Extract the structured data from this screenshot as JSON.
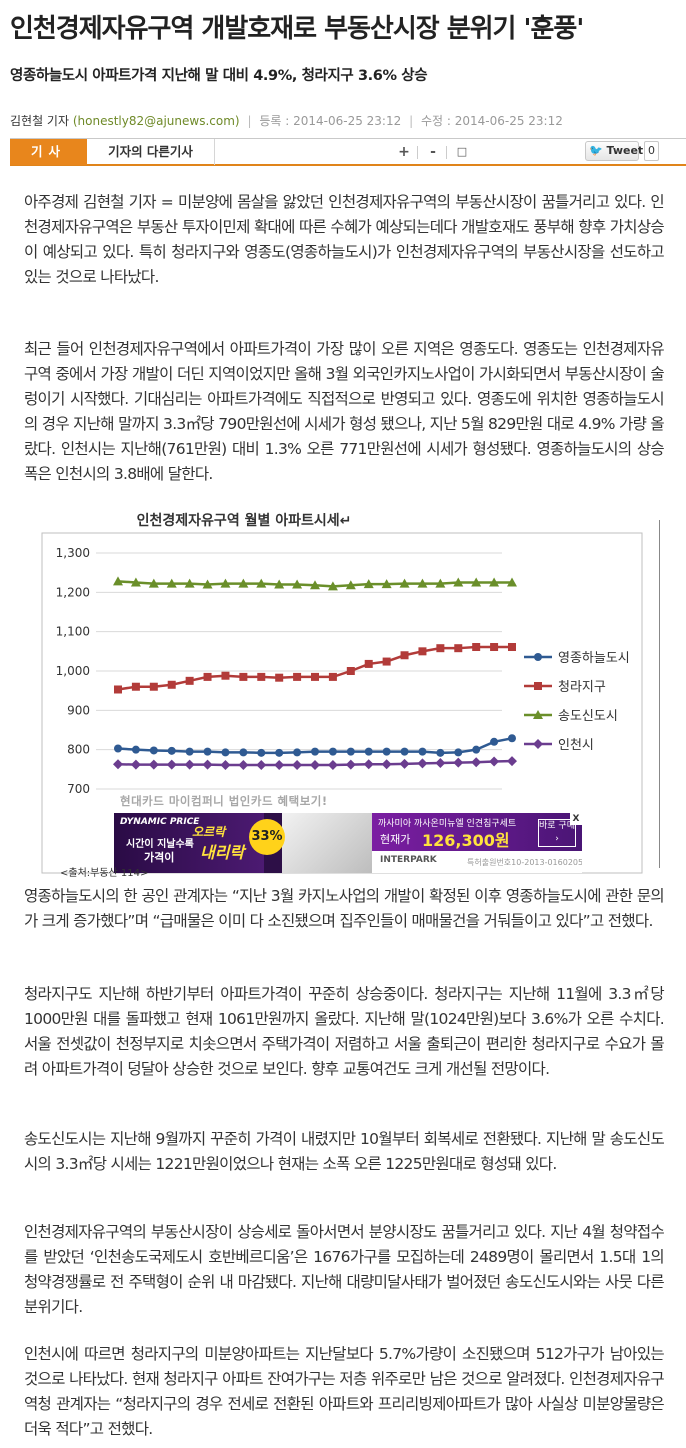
{
  "article": {
    "title": "인천경제자유구역 개발호재로 부동산시장 분위기 '훈풍'",
    "subtitle": "영종하늘도시 아파트가격 지난해 말 대비 4.9%, 청라지구 3.6% 상승",
    "author": "김현철 기자",
    "email": "(honestly82@ajunews.com)",
    "registered_label": "등록 :",
    "registered": "2014-06-25 23:12",
    "modified_label": "수정 :",
    "modified": "2014-06-25 23:12"
  },
  "toolbar": {
    "tab_article": "기사",
    "tab_other": "기자의 다른기사",
    "font_up": "+",
    "font_down": "-",
    "print": "□",
    "tweet_label": "Tweet",
    "tweet_count": "0"
  },
  "paragraphs": [
    "아주경제 김현철 기자 = 미분양에 몸살을 앓았던 인천경제자유구역의 부동산시장이 꿈틀거리고 있다. 인천경제자유구역은 부동산 투자이민제 확대에 따른 수혜가 예상되는데다 개발호재도 풍부해 향후 가치상승이 예상되고 있다. 특히 청라지구와 영종도(영종하늘도시)가 인천경제자유구역의 부동산시장을 선도하고 있는 것으로 나타났다.",
    "최근 들어 인천경제자유구역에서 아파트가격이 가장 많이 오른 지역은 영종도다. 영종도는 인천경제자유구역 중에서 가장 개발이 더딘 지역이었지만 올해 3월 외국인카지노사업이 가시화되면서 부동산시장이 술렁이기 시작했다. 기대심리는 아파트가격에도 직접적으로 반영되고 있다. 영종도에 위치한 영종하늘도시의 경우 지난해 말까지 3.3㎡당 790만원선에 시세가 형성 됐으나, 지난 5월 829만원 대로 4.9% 가량 올랐다. 인천시는 지난해(761만원) 대비 1.3% 오른 771만원선에 시세가 형성됐다. 영종하늘도시의 상승폭은 인천시의 3.8배에 달한다.",
    "영종하늘도시의 한 공인 관계자는 “지난 3월 카지노사업의 개발이 확정된 이후 영종하늘도시에 관한 문의가 크게 증가했다”며 “급매물은 이미 다 소진됐으며 집주인들이 매매물건을 거둬들이고 있다”고 전했다.",
    "청라지구도 지난해 하반기부터 아파트가격이 꾸준히 상승중이다. 청라지구는 지난해 11월에 3.3㎡당 1000만원 대를 돌파했고 현재 1061만원까지 올랐다. 지난해 말(1024만원)보다 3.6%가 오른 수치다. 서울 전셋값이 천정부지로 치솟으면서 주택가격이 저렴하고 서울 출퇴근이 편리한 청라지구로 수요가 몰려 아파트가격이 덩달아 상승한 것으로 보인다. 향후 교통여건도 크게 개선될 전망이다.",
    "송도신도시는 지난해 9월까지 꾸준히 가격이 내렸지만 10월부터 회복세로 전환됐다. 지난해 말 송도신도시의 3.3㎡당 시세는 1221만원이었으나 현재는 소폭 오른 1225만원대로 형성돼 있다.",
    "인천경제자유구역의 부동산시장이 상승세로 돌아서면서 분양시장도 꿈틀거리고 있다. 지난 4월 청약접수를 받았던 ‘인천송도국제도시 호반베르디움’은 1676가구를 모집하는데 2489명이 몰리면서 1.5대 1의 청약경쟁률로 전 주택형이 순위 내 마감됐다. 지난해 대량미달사태가 벌어졌던 송도신도시와는 사뭇 다른 분위기다.",
    "인천시에 따르면 청라지구의 미분양아파트는 지난달보다 5.7%가량이 소진됐으며 512가구가 남아있는 것으로 나타났다. 현재 청라지구 아파트 잔여가구는 저층 위주로만 남은 것으로 알려졌다. 인천경제자유구역청 관계자는 “청라지구의 경우 전세로 전환된 아파트와 프리리빙제아파트가 많아 사실상 미분양물량은 더욱 적다”고 전했다."
  ],
  "chart_data": {
    "type": "line",
    "title": "인천경제자유구역 월별 아파트시세↵",
    "source": "<출처:부동산 114>",
    "ylim": [
      700,
      1300
    ],
    "yticks": [
      "1,300",
      "1,200",
      "1,100",
      "1,000",
      "900",
      "800",
      "700"
    ],
    "ytick_values": [
      1300,
      1200,
      1100,
      1000,
      900,
      800,
      700
    ],
    "grid": true,
    "legend_position": "right",
    "series": [
      {
        "name": "영종하늘도시",
        "color": "#2f5a92",
        "marker": "circle",
        "values": [
          803,
          800,
          798,
          797,
          795,
          795,
          793,
          793,
          792,
          792,
          793,
          795,
          795,
          795,
          795,
          795,
          795,
          795,
          792,
          793,
          800,
          820,
          829
        ]
      },
      {
        "name": "청라지구",
        "color": "#b23b39",
        "marker": "square",
        "values": [
          953,
          960,
          960,
          965,
          975,
          985,
          988,
          985,
          985,
          983,
          985,
          985,
          985,
          1000,
          1018,
          1024,
          1040,
          1050,
          1058,
          1058,
          1061,
          1061,
          1061
        ]
      },
      {
        "name": "송도신도시",
        "color": "#6a8f2a",
        "marker": "triangle",
        "values": [
          1228,
          1225,
          1222,
          1222,
          1222,
          1220,
          1222,
          1222,
          1222,
          1220,
          1220,
          1218,
          1215,
          1218,
          1221,
          1221,
          1222,
          1222,
          1222,
          1225,
          1225,
          1225,
          1225
        ]
      },
      {
        "name": "인천시",
        "color": "#6b3d8f",
        "marker": "diamond",
        "values": [
          763,
          762,
          762,
          762,
          762,
          762,
          761,
          761,
          761,
          761,
          761,
          761,
          761,
          762,
          763,
          763,
          764,
          765,
          766,
          767,
          768,
          770,
          771
        ]
      }
    ]
  },
  "ad": {
    "overlay_text": "현대카드 마이컴퍼니 법인카드 혜택보기!",
    "brand": "DYNAMIC PRICE",
    "tag1": "시간이 지날수록",
    "tag2": "가격이",
    "tag3": "오르락",
    "tag4": "내리락",
    "badge": "33%",
    "product": "까사미아 까사온미뉴엘 인견침구세트",
    "price_label": "현재가",
    "price": "126,300원",
    "buy": "바로 구매 ›",
    "store": "INTERPARK",
    "legal": "특허출원번호10-2013-0160205",
    "close": "X"
  }
}
